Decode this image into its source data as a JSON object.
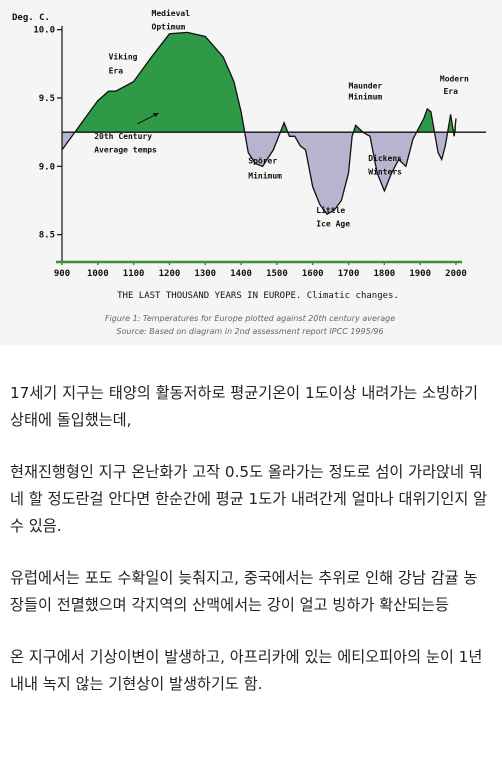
{
  "chart_data": {
    "type": "area",
    "ylabel": "Deg. C.",
    "xlabel": "THE LAST THOUSAND YEARS IN EUROPE. Climatic changes.",
    "xlim": [
      900,
      2000
    ],
    "ylim": [
      8.3,
      10.1
    ],
    "baseline": 9.25,
    "grid": false,
    "x_ticks": [
      900,
      1000,
      1100,
      1200,
      1300,
      1400,
      1500,
      1600,
      1700,
      1800,
      1900,
      2000
    ],
    "y_ticks": [
      10.0,
      9.5,
      9.0,
      8.5
    ],
    "y_tick_labels": [
      "10.0",
      "9.5",
      "9.0",
      "8.5"
    ],
    "series": [
      {
        "x": [
          900,
          950,
          1000,
          1030,
          1050,
          1100,
          1150,
          1200,
          1250,
          1300,
          1350,
          1380,
          1400,
          1420,
          1440,
          1460,
          1490,
          1520,
          1535,
          1550,
          1565,
          1580,
          1600,
          1620,
          1640,
          1660,
          1680,
          1700,
          1710,
          1720,
          1740,
          1760,
          1780,
          1800,
          1820,
          1840,
          1860,
          1880,
          1900,
          1910,
          1920,
          1930,
          1940,
          1950,
          1960,
          1970,
          1980,
          1985,
          1990,
          1995,
          2000
        ],
        "y": [
          9.12,
          9.3,
          9.48,
          9.55,
          9.55,
          9.62,
          9.8,
          9.97,
          9.98,
          9.95,
          9.8,
          9.62,
          9.4,
          9.1,
          9.02,
          9.0,
          9.12,
          9.32,
          9.22,
          9.22,
          9.15,
          9.12,
          8.85,
          8.72,
          8.65,
          8.68,
          8.75,
          8.95,
          9.22,
          9.3,
          9.25,
          9.22,
          8.95,
          8.82,
          8.95,
          9.05,
          9.0,
          9.2,
          9.3,
          9.35,
          9.42,
          9.4,
          9.25,
          9.1,
          9.05,
          9.15,
          9.3,
          9.38,
          9.3,
          9.22,
          9.35
        ]
      }
    ],
    "annotations": [
      {
        "text": "Medieval",
        "x": 1150,
        "y": 10.1
      },
      {
        "text": "Optimum",
        "x": 1150,
        "y": 10.0
      },
      {
        "text": "Viking",
        "x": 1030,
        "y": 9.78
      },
      {
        "text": "Era",
        "x": 1030,
        "y": 9.68
      },
      {
        "text": "20th Century",
        "x": 990,
        "y": 9.2
      },
      {
        "text": "Average temps",
        "x": 990,
        "y": 9.1
      },
      {
        "text": "Maunder",
        "x": 1700,
        "y": 9.57
      },
      {
        "text": "Minimum",
        "x": 1700,
        "y": 9.49
      },
      {
        "text": "Modern",
        "x": 1955,
        "y": 9.62
      },
      {
        "text": "Era",
        "x": 1965,
        "y": 9.53
      },
      {
        "text": "Spörer",
        "x": 1420,
        "y": 9.02
      },
      {
        "text": "Minimum",
        "x": 1420,
        "y": 8.91
      },
      {
        "text": "Dickens",
        "x": 1755,
        "y": 9.04
      },
      {
        "text": "Winters",
        "x": 1755,
        "y": 8.94
      },
      {
        "text": "Little",
        "x": 1610,
        "y": 8.66
      },
      {
        "text": "Ice Age",
        "x": 1610,
        "y": 8.56
      }
    ],
    "caption_lines": [
      "Figure 1: Temperatures for Europe plotted against 20th century average",
      "Source: Based on diagram in 2nd assessment report IPCC 1995/96"
    ]
  },
  "article": {
    "paragraphs": [
      "17세기 지구는 태양의 활동저하로 평균기온이 1도이상 내려가는 소빙하기 상태에 돌입했는데,",
      "현재진행형인 지구 온난화가 고작 0.5도 올라가는 정도로 섬이 가라앉네 뭐네 할 정도란걸 안다면 한순간에 평균 1도가 내려간게 얼마나 대위기인지 알 수 있음.",
      "유럽에서는 포도 수확일이 늦춰지고, 중국에서는 추위로 인해 강남 감귤 농장들이 전멸했으며 각지역의 산맥에서는 강이 얼고 빙하가 확산되는등",
      "온 지구에서 기상이변이 발생하고, 아프리카에 있는 에티오피아의 눈이 1년 내내 녹지 않는 기현상이 발생하기도 함."
    ]
  },
  "colors": {
    "warm_fill": "#2e9a48",
    "cold_fill": "#b8b4d0",
    "outline": "#111111",
    "figure_bg": "#f5f5f5",
    "x_axis": "#3c8f3c"
  }
}
